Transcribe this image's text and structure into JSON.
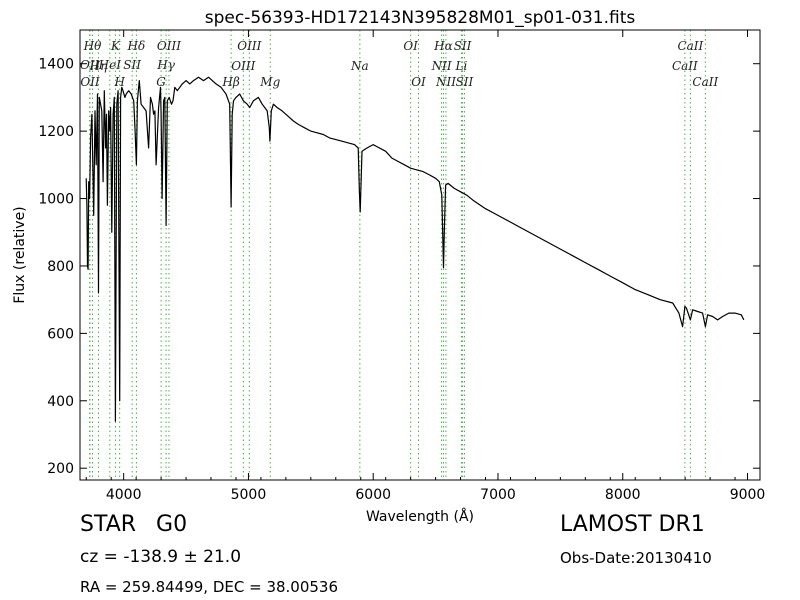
{
  "chart_data": {
    "type": "line",
    "title": "spec-56393-HD172143N395828M01_sp01-031.fits",
    "xlabel": "Wavelength (Å)",
    "ylabel": "Flux (relative)",
    "xlim": [
      3650,
      9100
    ],
    "ylim": [
      165,
      1500
    ],
    "xticks": [
      4000,
      5000,
      6000,
      7000,
      8000,
      9000
    ],
    "yticks": [
      200,
      400,
      600,
      800,
      1000,
      1200,
      1400
    ],
    "grid": false,
    "line_color": "#000000",
    "marker_color": "#4caf50",
    "series": [
      {
        "x": [
          3700,
          3705,
          3710,
          3715,
          3720,
          3727,
          3735,
          3745,
          3760,
          3770,
          3780,
          3790,
          3798,
          3805,
          3815,
          3825,
          3835,
          3845,
          3855,
          3862,
          3870,
          3880,
          3889,
          3895,
          3905,
          3915,
          3925,
          3934,
          3945,
          3955,
          3968,
          3975,
          3985,
          3995,
          4010,
          4020,
          4040,
          4060,
          4080,
          4092,
          4102,
          4110,
          4125,
          4140,
          4160,
          4180,
          4200,
          4215,
          4230,
          4240,
          4250,
          4260,
          4280,
          4295,
          4300,
          4308,
          4320,
          4330,
          4340,
          4350,
          4365,
          4383,
          4395,
          4410,
          4430,
          4450,
          4470,
          4500,
          4530,
          4560,
          4600,
          4640,
          4680,
          4710,
          4740,
          4780,
          4820,
          4850,
          4861,
          4870,
          4880,
          4900,
          4930,
          4960,
          4990,
          5010,
          5040,
          5080,
          5110,
          5130,
          5150,
          5167,
          5172,
          5183,
          5200,
          5230,
          5270,
          5300,
          5330,
          5360,
          5400,
          5450,
          5500,
          5550,
          5600,
          5650,
          5700,
          5750,
          5800,
          5850,
          5880,
          5889,
          5896,
          5910,
          5950,
          6000,
          6050,
          6100,
          6150,
          6200,
          6250,
          6300,
          6350,
          6400,
          6450,
          6500,
          6530,
          6550,
          6563,
          6570,
          6580,
          6600,
          6650,
          6700,
          6750,
          6800,
          6900,
          7000,
          7100,
          7200,
          7300,
          7400,
          7500,
          7600,
          7700,
          7800,
          7900,
          8000,
          8100,
          8200,
          8300,
          8400,
          8450,
          8480,
          8498,
          8510,
          8542,
          8560,
          8600,
          8640,
          8662,
          8680,
          8720,
          8760,
          8800,
          8850,
          8900,
          8950,
          8970
        ],
        "y": [
          1060,
          980,
          800,
          790,
          1050,
          1000,
          1180,
          1250,
          950,
          1260,
          1100,
          1310,
          720,
          1300,
          1280,
          1260,
          1050,
          1320,
          1150,
          1250,
          980,
          1260,
          1200,
          1270,
          900,
          1250,
          1300,
          340,
          1280,
          1320,
          400,
          1300,
          1330,
          1320,
          1300,
          1310,
          1320,
          1310,
          1290,
          1200,
          1100,
          1290,
          1350,
          1280,
          1270,
          1260,
          1150,
          1300,
          1280,
          1250,
          1260,
          1100,
          1270,
          1330,
          1250,
          1000,
          1290,
          1300,
          920,
          1290,
          1300,
          1280,
          1290,
          1330,
          1320,
          1330,
          1340,
          1350,
          1340,
          1350,
          1360,
          1350,
          1360,
          1350,
          1340,
          1330,
          1310,
          1280,
          975,
          1250,
          1290,
          1300,
          1310,
          1290,
          1280,
          1270,
          1290,
          1300,
          1280,
          1270,
          1260,
          1210,
          1170,
          1260,
          1280,
          1270,
          1260,
          1250,
          1240,
          1230,
          1220,
          1210,
          1200,
          1195,
          1190,
          1180,
          1175,
          1170,
          1165,
          1160,
          1150,
          1020,
          960,
          1140,
          1150,
          1160,
          1150,
          1140,
          1120,
          1110,
          1100,
          1090,
          1085,
          1080,
          1070,
          1060,
          1050,
          1010,
          795,
          900,
          1040,
          1045,
          1030,
          1020,
          1010,
          995,
          970,
          950,
          930,
          910,
          890,
          870,
          850,
          830,
          810,
          790,
          770,
          750,
          730,
          715,
          700,
          690,
          660,
          620,
          680,
          675,
          640,
          670,
          665,
          660,
          620,
          655,
          650,
          640,
          650,
          660,
          660,
          655,
          640
        ]
      }
    ],
    "emission_lines": [
      {
        "wavelength": 3727,
        "label": "OII",
        "row": 2
      },
      {
        "wavelength": 3730,
        "label": "OII",
        "row": 4
      },
      {
        "wavelength": 3750,
        "label": "Hθ",
        "row": 1
      },
      {
        "wavelength": 3798,
        "label": "Hη",
        "row": 3
      },
      {
        "wavelength": 3889,
        "label": "HeI",
        "row": 2
      },
      {
        "wavelength": 3934,
        "label": "K",
        "row": 1
      },
      {
        "wavelength": 3968,
        "label": "H",
        "row": 4
      },
      {
        "wavelength": 4068,
        "label": "SII",
        "row": 2
      },
      {
        "wavelength": 4102,
        "label": "Hδ",
        "row": 1
      },
      {
        "wavelength": 4300,
        "label": "G",
        "row": 4
      },
      {
        "wavelength": 4340,
        "label": "Hγ",
        "row": 2
      },
      {
        "wavelength": 4363,
        "label": "OIII",
        "row": 1
      },
      {
        "wavelength": 4861,
        "label": "Hβ",
        "row": 4
      },
      {
        "wavelength": 4959,
        "label": "OIII",
        "row": 3
      },
      {
        "wavelength": 5007,
        "label": "OIII",
        "row": 1
      },
      {
        "wavelength": 5175,
        "label": "Mg",
        "row": 4
      },
      {
        "wavelength": 5893,
        "label": "Na",
        "row": 3
      },
      {
        "wavelength": 6300,
        "label": "OI",
        "row": 1
      },
      {
        "wavelength": 6363,
        "label": "OI",
        "row": 4
      },
      {
        "wavelength": 6548,
        "label": "NII",
        "row": 3
      },
      {
        "wavelength": 6563,
        "label": "Hα",
        "row": 1
      },
      {
        "wavelength": 6583,
        "label": "NII",
        "row": 4
      },
      {
        "wavelength": 6707,
        "label": "Li",
        "row": 3
      },
      {
        "wavelength": 6716,
        "label": "SII",
        "row": 1
      },
      {
        "wavelength": 6731,
        "label": "SII",
        "row": 4
      },
      {
        "wavelength": 8498,
        "label": "CaII",
        "row": 3
      },
      {
        "wavelength": 8542,
        "label": "CaII",
        "row": 1
      },
      {
        "wavelength": 8662,
        "label": "CaII",
        "row": 4
      }
    ]
  },
  "info": {
    "object_class": "STAR",
    "subclass": "G0",
    "cz_text": "cz = -138.9  ± 21.0",
    "radec_text": "RA = 259.84499, DEC = 38.00536",
    "survey": "LAMOST DR1",
    "obs_date_text": "Obs-Date:20130410"
  }
}
